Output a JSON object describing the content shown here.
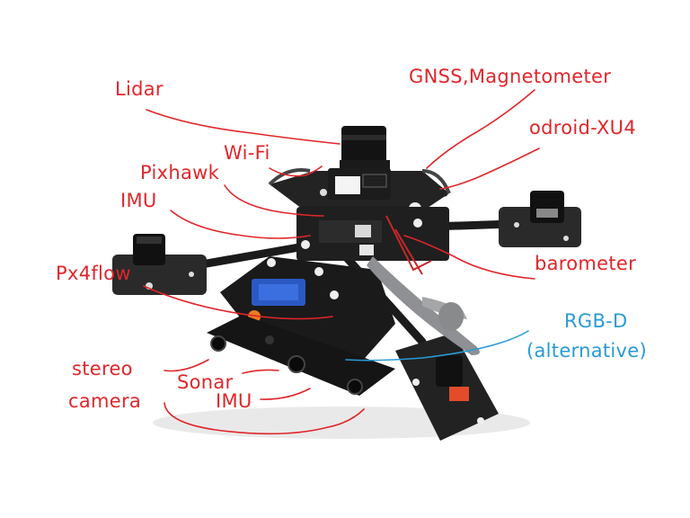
{
  "labels": {
    "lidar": "Lidar",
    "gnss": "GNSS,Magnetometer",
    "odroid": "odroid-XU4",
    "wifi": "Wi-Fi",
    "pixhawk": "Pixhawk",
    "imu_top": "IMU",
    "barometer": "barometer",
    "px4flow": "Px4flow",
    "rgbd_line1": "RGB-D",
    "rgbd_line2": "(alternative)",
    "stereo_line1": "stereo",
    "stereo_line2": "camera",
    "sonar": "Sonar",
    "imu_bottom": "IMU"
  },
  "colors": {
    "label_red": "#e0262b",
    "label_blue": "#2a9ad6",
    "frame": "#1b1b1b",
    "propeller": "#8e9093",
    "accent_blue": "#2b59c3",
    "accent_orange": "#f07a1e"
  }
}
